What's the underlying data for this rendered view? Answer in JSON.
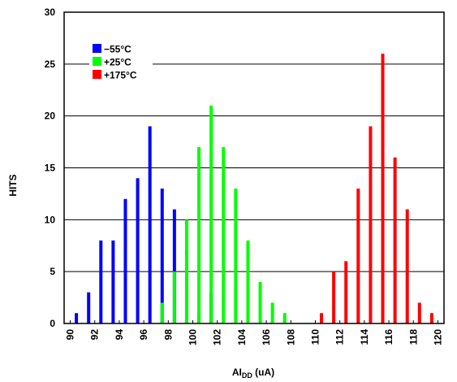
{
  "chart_data": {
    "type": "bar",
    "xlabel_main": "AI",
    "xlabel_sub": "DD",
    "xlabel_unit": " (uA)",
    "ylabel": "HITS",
    "xlim": [
      89.5,
      120.5
    ],
    "ylim": [
      0,
      30
    ],
    "xticks": [
      90,
      92,
      94,
      96,
      98,
      100,
      102,
      104,
      106,
      108,
      110,
      112,
      114,
      116,
      118,
      120
    ],
    "yticks": [
      0,
      5,
      10,
      15,
      20,
      25,
      30
    ],
    "grid": "horizontal",
    "legend_position": "top-left",
    "series": [
      {
        "name": "−55°C",
        "color": "#0000ff",
        "x": [
          90.5,
          91.5,
          92.5,
          93.5,
          94.5,
          95.5,
          96.5,
          97.5,
          98.5,
          99.5,
          100.5,
          101.5
        ],
        "values": [
          1,
          3,
          8,
          8,
          12,
          14,
          19,
          13,
          11,
          7,
          1,
          3
        ]
      },
      {
        "name": "+25°C",
        "color": "#00ff00",
        "x": [
          97.5,
          98.5,
          99.5,
          100.5,
          101.5,
          102.5,
          103.5,
          104.5,
          105.5,
          106.5,
          107.5
        ],
        "values": [
          2,
          5,
          10,
          17,
          21,
          17,
          13,
          8,
          4,
          2,
          1
        ]
      },
      {
        "name": "+175°C",
        "color": "#ff0000",
        "x": [
          110.5,
          111.5,
          112.5,
          113.5,
          114.5,
          115.5,
          116.5,
          117.5,
          118.5,
          119.5
        ],
        "values": [
          1,
          5,
          6,
          13,
          19,
          26,
          16,
          11,
          2,
          1
        ]
      }
    ]
  }
}
